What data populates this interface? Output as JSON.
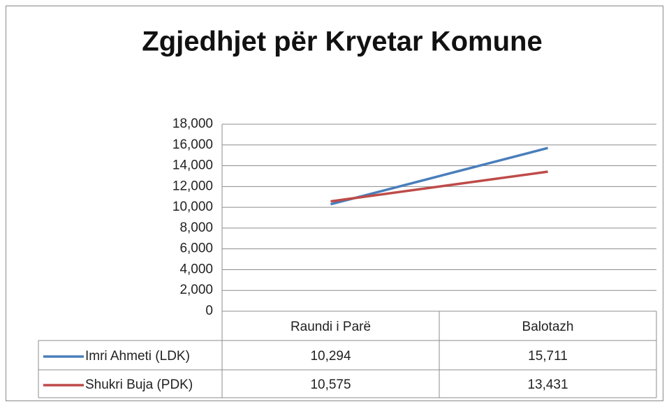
{
  "chart_data": {
    "type": "line",
    "title": "Zgjedhjet për Kryetar Komune",
    "categories": [
      "Raundi i Parë",
      "Balotazh"
    ],
    "series": [
      {
        "name": "Imri Ahmeti (LDK)",
        "color": "#4a7ebb",
        "values": [
          10294,
          15711
        ],
        "value_labels": [
          "10,294",
          "15,711"
        ]
      },
      {
        "name": "Shukri Buja (PDK)",
        "color": "#be4b48",
        "values": [
          10575,
          13431
        ],
        "value_labels": [
          "10,575",
          "13,431"
        ]
      }
    ],
    "ylim": [
      0,
      18000
    ],
    "yticks": [
      0,
      {
        "value": 2000,
        "label": "2,000"
      },
      {
        "value": 4000,
        "label": "4,000"
      },
      {
        "value": 6000,
        "label": "6,000"
      },
      {
        "value": 8000,
        "label": "8,000"
      },
      {
        "value": 10000,
        "label": "10,000"
      },
      {
        "value": 12000,
        "label": "12,000"
      },
      {
        "value": 14000,
        "label": "14,000"
      },
      {
        "value": 16000,
        "label": "16,000"
      },
      {
        "value": 18000,
        "label": "18,000"
      }
    ],
    "grid": true
  }
}
